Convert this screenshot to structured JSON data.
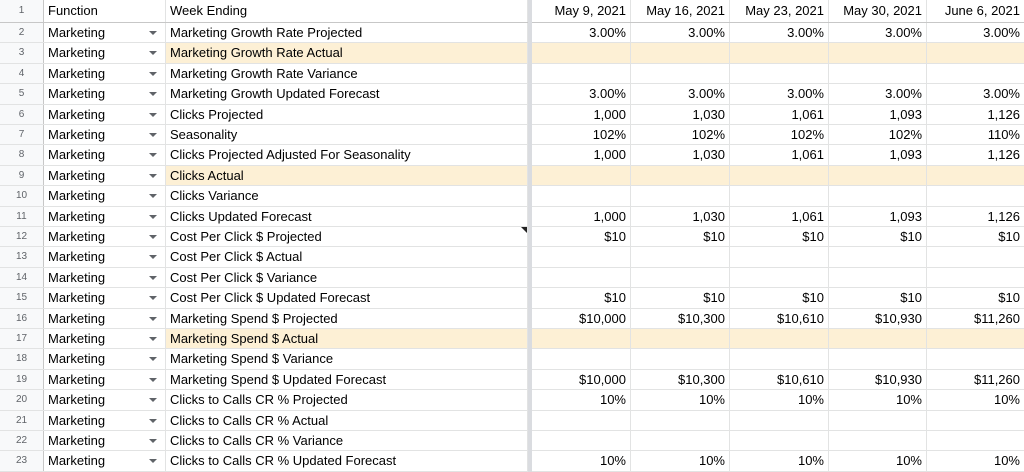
{
  "header": {
    "row_number": "1",
    "function": "Function",
    "week_ending": "Week Ending",
    "dates": [
      "May 9, 2021",
      "May 16, 2021",
      "May 23, 2021",
      "May 30, 2021",
      "June 6, 2021"
    ]
  },
  "highlight_color": "#fdf0d5",
  "rows": [
    {
      "n": "2",
      "fn": "Marketing",
      "label": "Marketing Growth Rate Projected",
      "hl": false,
      "v": [
        "3.00%",
        "3.00%",
        "3.00%",
        "3.00%",
        "3.00%"
      ]
    },
    {
      "n": "3",
      "fn": "Marketing",
      "label": "Marketing Growth Rate Actual",
      "hl": true,
      "v": [
        "",
        "",
        "",
        "",
        ""
      ]
    },
    {
      "n": "4",
      "fn": "Marketing",
      "label": "Marketing Growth Rate Variance",
      "hl": false,
      "v": [
        "",
        "",
        "",
        "",
        ""
      ]
    },
    {
      "n": "5",
      "fn": "Marketing",
      "label": "Marketing Growth Updated Forecast",
      "hl": false,
      "v": [
        "3.00%",
        "3.00%",
        "3.00%",
        "3.00%",
        "3.00%"
      ]
    },
    {
      "n": "6",
      "fn": "Marketing",
      "label": "Clicks Projected",
      "hl": false,
      "v": [
        "1,000",
        "1,030",
        "1,061",
        "1,093",
        "1,126"
      ]
    },
    {
      "n": "7",
      "fn": "Marketing",
      "label": "Seasonality",
      "hl": false,
      "v": [
        "102%",
        "102%",
        "102%",
        "102%",
        "110%"
      ]
    },
    {
      "n": "8",
      "fn": "Marketing",
      "label": "Clicks Projected Adjusted For Seasonality",
      "hl": false,
      "v": [
        "1,000",
        "1,030",
        "1,061",
        "1,093",
        "1,126"
      ]
    },
    {
      "n": "9",
      "fn": "Marketing",
      "label": "Clicks Actual",
      "hl": true,
      "v": [
        "",
        "",
        "",
        "",
        ""
      ]
    },
    {
      "n": "10",
      "fn": "Marketing",
      "label": "Clicks Variance",
      "hl": false,
      "v": [
        "",
        "",
        "",
        "",
        ""
      ]
    },
    {
      "n": "11",
      "fn": "Marketing",
      "label": "Clicks Updated Forecast",
      "hl": false,
      "v": [
        "1,000",
        "1,030",
        "1,061",
        "1,093",
        "1,126"
      ]
    },
    {
      "n": "12",
      "fn": "Marketing",
      "label": "Cost Per Click $ Projected",
      "hl": false,
      "v": [
        "$10",
        "$10",
        "$10",
        "$10",
        "$10"
      ]
    },
    {
      "n": "13",
      "fn": "Marketing",
      "label": "Cost Per Click $ Actual",
      "hl": false,
      "v": [
        "",
        "",
        "",
        "",
        ""
      ]
    },
    {
      "n": "14",
      "fn": "Marketing",
      "label": "Cost Per Click $ Variance",
      "hl": false,
      "v": [
        "",
        "",
        "",
        "",
        ""
      ]
    },
    {
      "n": "15",
      "fn": "Marketing",
      "label": "Cost Per Click $ Updated Forecast",
      "hl": false,
      "v": [
        "$10",
        "$10",
        "$10",
        "$10",
        "$10"
      ]
    },
    {
      "n": "16",
      "fn": "Marketing",
      "label": "Marketing Spend $ Projected",
      "hl": false,
      "v": [
        "$10,000",
        "$10,300",
        "$10,610",
        "$10,930",
        "$11,260"
      ]
    },
    {
      "n": "17",
      "fn": "Marketing",
      "label": "Marketing Spend $ Actual",
      "hl": true,
      "v": [
        "",
        "",
        "",
        "",
        ""
      ]
    },
    {
      "n": "18",
      "fn": "Marketing",
      "label": "Marketing Spend $ Variance",
      "hl": false,
      "v": [
        "",
        "",
        "",
        "",
        ""
      ]
    },
    {
      "n": "19",
      "fn": "Marketing",
      "label": "Marketing Spend $ Updated Forecast",
      "hl": false,
      "v": [
        "$10,000",
        "$10,300",
        "$10,610",
        "$10,930",
        "$11,260"
      ]
    },
    {
      "n": "20",
      "fn": "Marketing",
      "label": "Clicks to Calls CR % Projected",
      "hl": false,
      "v": [
        "10%",
        "10%",
        "10%",
        "10%",
        "10%"
      ]
    },
    {
      "n": "21",
      "fn": "Marketing",
      "label": "Clicks to Calls CR % Actual",
      "hl": false,
      "v": [
        "",
        "",
        "",
        "",
        ""
      ]
    },
    {
      "n": "22",
      "fn": "Marketing",
      "label": "Clicks to Calls CR % Variance",
      "hl": false,
      "v": [
        "",
        "",
        "",
        "",
        ""
      ]
    },
    {
      "n": "23",
      "fn": "Marketing",
      "label": "Clicks to Calls CR % Updated Forecast",
      "hl": false,
      "v": [
        "10%",
        "10%",
        "10%",
        "10%",
        "10%"
      ]
    }
  ]
}
